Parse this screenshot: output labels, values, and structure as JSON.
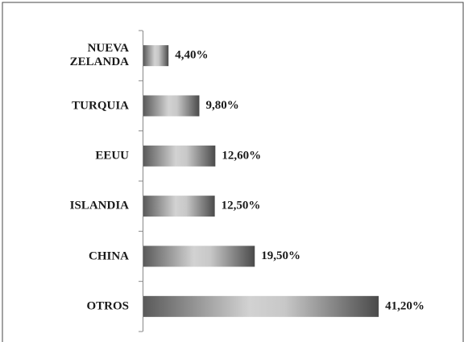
{
  "chart_data": {
    "type": "bar",
    "orientation": "horizontal",
    "categories": [
      "NUEVA ZELANDA",
      "TURQUIA",
      "EEUU",
      "ISLANDIA",
      "CHINA",
      "OTROS"
    ],
    "values": [
      4.4,
      9.8,
      12.6,
      12.5,
      19.5,
      41.2
    ],
    "value_labels": [
      "4,40%",
      "9,80%",
      "12,60%",
      "12,50%",
      "19,50%",
      "41,20%"
    ],
    "color": "gray gradient"
  }
}
